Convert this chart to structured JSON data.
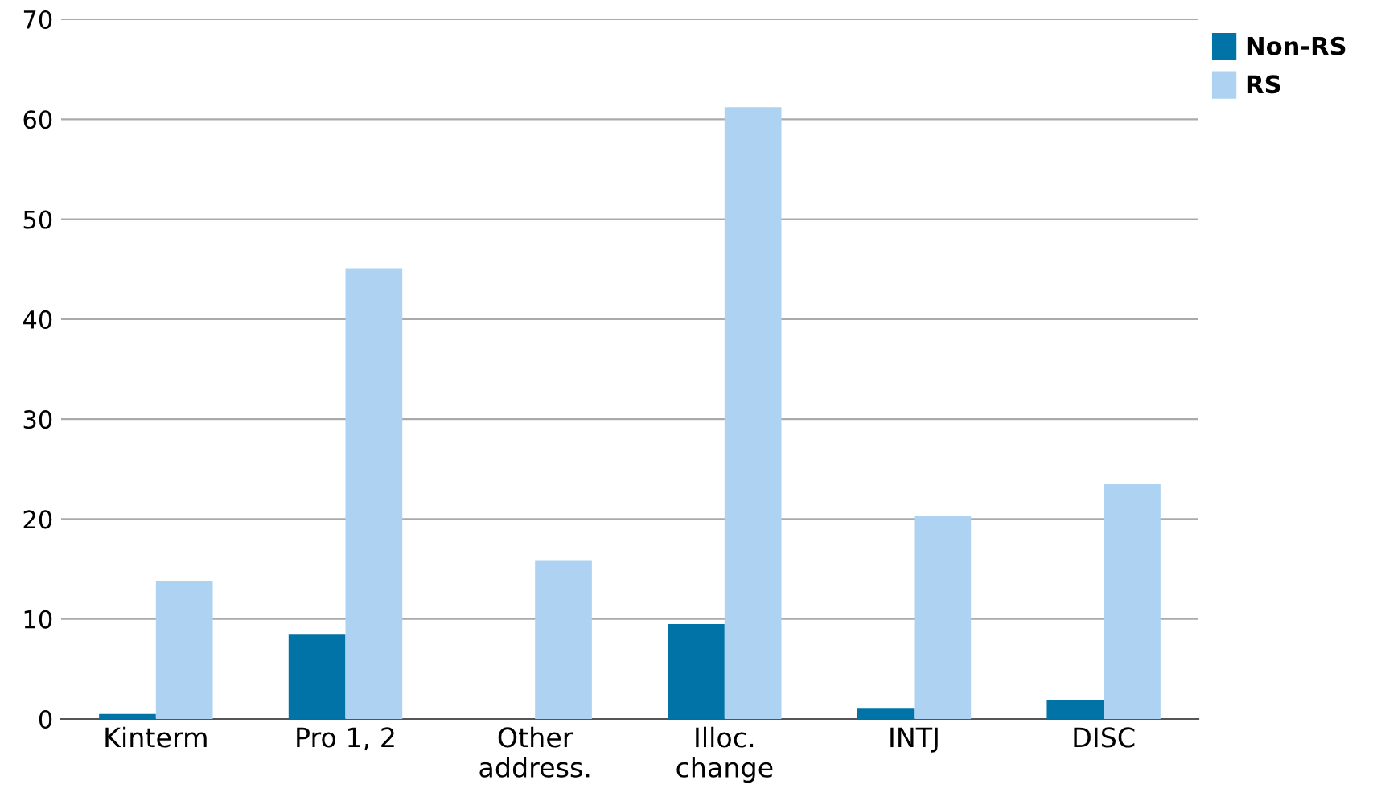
{
  "chart_data": {
    "type": "bar",
    "categories": [
      "Kinterm",
      "Pro 1, 2",
      "Other\naddress.",
      "Illoc.\nchange",
      "INTJ",
      "DISC"
    ],
    "series": [
      {
        "name": "Non-RS",
        "color": "#0173a6",
        "values": [
          0.5,
          8.5,
          0,
          9.5,
          1.1,
          1.9
        ]
      },
      {
        "name": "RS",
        "color": "#aed3f2",
        "values": [
          13.8,
          45.1,
          15.9,
          61.2,
          20.3,
          23.5
        ]
      }
    ],
    "ylim": [
      0,
      70
    ],
    "yticks": [
      0,
      10,
      20,
      30,
      40,
      50,
      60,
      70
    ],
    "grid": "y",
    "legend": "top right"
  }
}
